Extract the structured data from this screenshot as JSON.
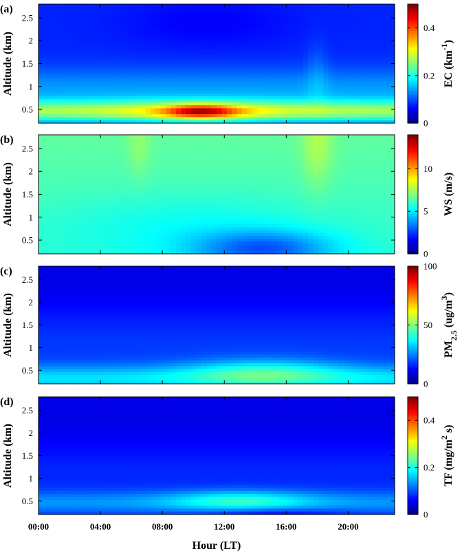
{
  "chart_data": [
    {
      "type": "heatmap",
      "panel_label": "(a)",
      "ylabel": "Altitude (km)",
      "colorbar": {
        "label_main": "EC (km",
        "label_sup": "-1",
        "label_tail": ")",
        "ticks": [
          0,
          0.2,
          0.4
        ],
        "tick_labels": [
          "0",
          "0.2",
          "0.4"
        ],
        "range": [
          0,
          0.5
        ]
      },
      "ylim": [
        0.2,
        2.8
      ],
      "xlim": [
        0,
        23
      ],
      "yticks": [
        0.5,
        1,
        1.5,
        2,
        2.5
      ],
      "ytick_labels": [
        "0.5",
        "1",
        "1.5",
        "2",
        "2.5"
      ],
      "field": {
        "kind": "ec"
      }
    },
    {
      "type": "heatmap",
      "panel_label": "(b)",
      "ylabel": "Altitude (km)",
      "colorbar": {
        "label_main": "WS (m/s)",
        "label_sup": "",
        "label_tail": "",
        "ticks": [
          0,
          5,
          10
        ],
        "tick_labels": [
          "0",
          "5",
          "10"
        ],
        "range": [
          0,
          14
        ]
      },
      "ylim": [
        0.2,
        2.8
      ],
      "xlim": [
        0,
        23
      ],
      "yticks": [
        0.5,
        1,
        1.5,
        2,
        2.5
      ],
      "ytick_labels": [
        "0.5",
        "1",
        "1.5",
        "2",
        "2.5"
      ],
      "field": {
        "kind": "ws"
      }
    },
    {
      "type": "heatmap",
      "panel_label": "(c)",
      "ylabel": "Altitude (km)",
      "colorbar": {
        "label_main": "PM",
        "label_sub": "2.5",
        "label_mid": " (ug/m",
        "label_sup": "3",
        "label_tail": ")",
        "ticks": [
          0,
          50,
          100
        ],
        "tick_labels": [
          "0",
          "50",
          "100"
        ],
        "range": [
          0,
          100
        ]
      },
      "ylim": [
        0.2,
        2.8
      ],
      "xlim": [
        0,
        23
      ],
      "yticks": [
        0.5,
        1,
        1.5,
        2,
        2.5
      ],
      "ytick_labels": [
        "0.5",
        "1",
        "1.5",
        "2",
        "2.5"
      ],
      "field": {
        "kind": "pm"
      }
    },
    {
      "type": "heatmap",
      "panel_label": "(d)",
      "ylabel": "Altitude (km)",
      "xlabel": "Hour (LT)",
      "colorbar": {
        "label_main": "TF (mg/m",
        "label_sup": "2",
        "label_tail": " s)",
        "ticks": [
          0,
          0.2,
          0.4
        ],
        "tick_labels": [
          "0",
          "0.2",
          "0.4"
        ],
        "range": [
          0,
          0.5
        ]
      },
      "ylim": [
        0.2,
        2.8
      ],
      "xlim": [
        0,
        23
      ],
      "yticks": [
        0.5,
        1,
        1.5,
        2,
        2.5
      ],
      "ytick_labels": [
        "0.5",
        "1",
        "1.5",
        "2",
        "2.5"
      ],
      "xticks": [
        0,
        4,
        8,
        12,
        16,
        20
      ],
      "xtick_labels": [
        "00:00",
        "04:00",
        "08:00",
        "12:00",
        "16:00",
        "20:00"
      ],
      "field": {
        "kind": "tf"
      }
    }
  ]
}
